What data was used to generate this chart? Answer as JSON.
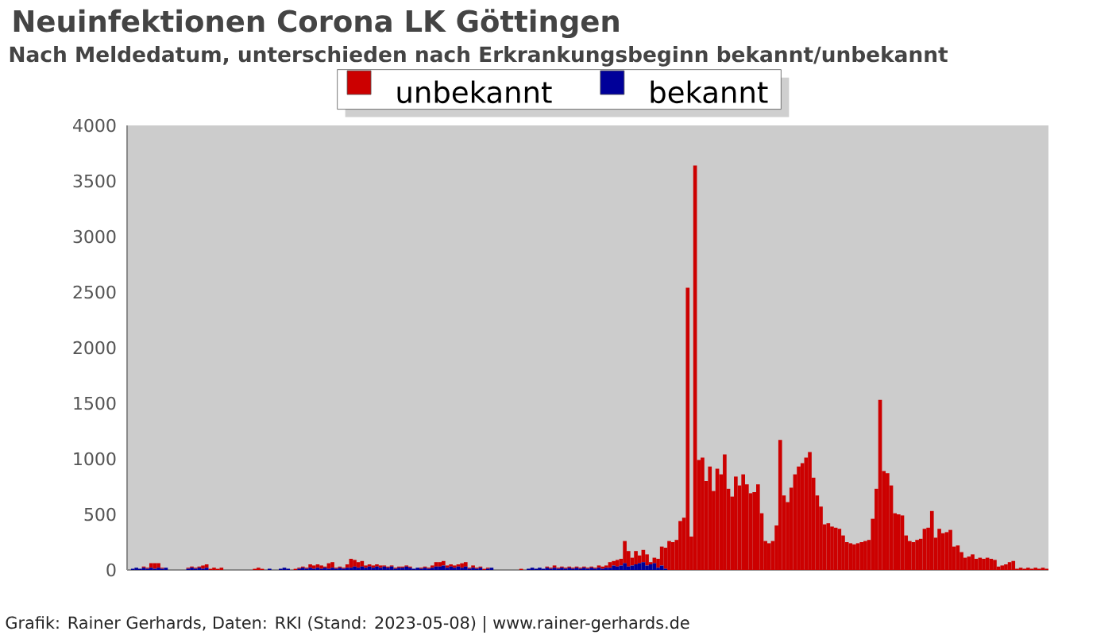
{
  "chart_data": {
    "type": "bar",
    "title": "Neuinfektionen Corona LK Göttingen",
    "subtitle": "Nach Meldedatum, unterschieden nach Erkrankungsbeginn bekannt/unbekannt",
    "annotations": [
      "Grafik: Rainer Gerhards, Daten: RKI (Stand: 2023-05-08) | www.rainer-gerhards.de"
    ],
    "categories": [
      null,
      null,
      null,
      null,
      null,
      null,
      null,
      null,
      null,
      null,
      null,
      null,
      null,
      null,
      null,
      null,
      null,
      null,
      null,
      null,
      null,
      null,
      null,
      null,
      null,
      null,
      null,
      null,
      null,
      null,
      null,
      null,
      null,
      null,
      null,
      null,
      null,
      null,
      null,
      null,
      null,
      null,
      null,
      null,
      null,
      null,
      null,
      null,
      null,
      null,
      null,
      null,
      null,
      null,
      null,
      null,
      null,
      null,
      null,
      null,
      null,
      null,
      null,
      null,
      null,
      null,
      null,
      null,
      null,
      null,
      null,
      null,
      null,
      null,
      null,
      null,
      null,
      null,
      null,
      null,
      null,
      null,
      null,
      null,
      null,
      null,
      null,
      null,
      null,
      null,
      null,
      null,
      null,
      null,
      null,
      null,
      null,
      null,
      null,
      null,
      null,
      null,
      null,
      null,
      null,
      null,
      null,
      null,
      null,
      null,
      null,
      null,
      null,
      null,
      null,
      null,
      null,
      null,
      null,
      null,
      null,
      null,
      null,
      null,
      null,
      null,
      null,
      null,
      null,
      null,
      null,
      null,
      null,
      null,
      null,
      null,
      null,
      null,
      null,
      null,
      null,
      null,
      null,
      null,
      null,
      null,
      null,
      null,
      null,
      null,
      null,
      null,
      null,
      null,
      null,
      null,
      null,
      null,
      null,
      null,
      null,
      null,
      null,
      null,
      null,
      null,
      null,
      null,
      null,
      null,
      null,
      null,
      null,
      null,
      null,
      null,
      null,
      null,
      null,
      null,
      null,
      null,
      null,
      null,
      null,
      null,
      null,
      null,
      null,
      null,
      null,
      null,
      null,
      null,
      null,
      null,
      null,
      null,
      null,
      null,
      null,
      null,
      null,
      null,
      null,
      null,
      null,
      null,
      null,
      null,
      null,
      null,
      null,
      null,
      null,
      null,
      null,
      null,
      null,
      null,
      null,
      null,
      null,
      null,
      null,
      null,
      null,
      null,
      null,
      null,
      null,
      null,
      null,
      null,
      null,
      null,
      null,
      null,
      null,
      null,
      null,
      null,
      null,
      null,
      null,
      null,
      null,
      null,
      null
    ],
    "stacked": true,
    "series": [
      {
        "name": "bekannt",
        "color": "#000099",
        "values": [
          0,
          10,
          20,
          10,
          20,
          10,
          20,
          10,
          20,
          10,
          20,
          0,
          0,
          0,
          0,
          0,
          10,
          20,
          10,
          20,
          10,
          20,
          0,
          0,
          0,
          0,
          0,
          0,
          0,
          0,
          0,
          0,
          0,
          0,
          0,
          0,
          0,
          0,
          10,
          0,
          0,
          10,
          20,
          10,
          0,
          0,
          10,
          20,
          10,
          20,
          10,
          20,
          10,
          20,
          10,
          20,
          10,
          20,
          10,
          20,
          20,
          30,
          20,
          30,
          20,
          30,
          20,
          30,
          20,
          30,
          20,
          30,
          10,
          20,
          20,
          30,
          20,
          10,
          20,
          10,
          20,
          10,
          20,
          30,
          30,
          40,
          20,
          30,
          20,
          30,
          20,
          30,
          10,
          20,
          10,
          20,
          0,
          10,
          20,
          0,
          0,
          0,
          0,
          0,
          0,
          0,
          0,
          0,
          10,
          20,
          10,
          20,
          10,
          20,
          10,
          20,
          10,
          20,
          10,
          20,
          10,
          20,
          10,
          20,
          10,
          20,
          10,
          20,
          10,
          20,
          20,
          40,
          30,
          40,
          60,
          30,
          40,
          50,
          60,
          70,
          40,
          50,
          60,
          20,
          40,
          10,
          0,
          0,
          0,
          0,
          0,
          0,
          0,
          0,
          0,
          0,
          0,
          0,
          0,
          0,
          0,
          0,
          0,
          0,
          0,
          0,
          0,
          0,
          0,
          0,
          0,
          0,
          0,
          0,
          0,
          0,
          0,
          0,
          0,
          0,
          0,
          0,
          0,
          0,
          0,
          0,
          0,
          0,
          0,
          0,
          0,
          0,
          0,
          0,
          0,
          0,
          0,
          0,
          0,
          0,
          0,
          0,
          0,
          0,
          0,
          0,
          0,
          0,
          0,
          0,
          0,
          0,
          0,
          0,
          0,
          0,
          0,
          0,
          0,
          0,
          0,
          0,
          0,
          0,
          0,
          0,
          0,
          0,
          0,
          0,
          0,
          0,
          0,
          0,
          0,
          0,
          0,
          0,
          0,
          0,
          0,
          0,
          0,
          0,
          0,
          0,
          0,
          0,
          0
        ]
      },
      {
        "name": "unbekannt",
        "color": "#cc0000",
        "values": [
          0,
          0,
          0,
          0,
          10,
          10,
          40,
          50,
          40,
          10,
          0,
          0,
          0,
          0,
          0,
          0,
          10,
          10,
          10,
          10,
          30,
          30,
          10,
          20,
          10,
          20,
          0,
          0,
          0,
          0,
          0,
          0,
          0,
          0,
          10,
          20,
          10,
          0,
          0,
          0,
          0,
          0,
          0,
          0,
          0,
          10,
          10,
          10,
          10,
          30,
          30,
          30,
          30,
          10,
          50,
          50,
          10,
          10,
          10,
          30,
          80,
          60,
          50,
          50,
          20,
          20,
          20,
          20,
          20,
          10,
          10,
          10,
          10,
          10,
          10,
          10,
          10,
          0,
          0,
          10,
          10,
          10,
          20,
          40,
          40,
          40,
          20,
          20,
          20,
          20,
          40,
          40,
          10,
          20,
          10,
          10,
          10,
          10,
          0,
          0,
          0,
          0,
          0,
          0,
          0,
          0,
          10,
          0,
          0,
          0,
          0,
          0,
          0,
          10,
          10,
          20,
          10,
          10,
          10,
          10,
          10,
          10,
          10,
          10,
          10,
          10,
          10,
          20,
          20,
          20,
          50,
          40,
          60,
          60,
          200,
          140,
          70,
          120,
          70,
          110,
          100,
          20,
          50,
          80,
          170,
          190,
          260,
          250,
          270,
          440,
          470,
          2540,
          300,
          3640,
          990,
          1010,
          800,
          930,
          710,
          910,
          860,
          1040,
          730,
          660,
          840,
          760,
          860,
          770,
          690,
          700,
          770,
          510,
          260,
          240,
          260,
          400,
          1170,
          670,
          610,
          740,
          860,
          930,
          960,
          1010,
          1060,
          830,
          670,
          570,
          410,
          420,
          390,
          380,
          370,
          310,
          250,
          240,
          230,
          240,
          250,
          260,
          270,
          460,
          730,
          1530,
          890,
          870,
          760,
          510,
          500,
          490,
          310,
          260,
          250,
          270,
          280,
          370,
          380,
          530,
          290,
          370,
          330,
          340,
          360,
          210,
          220,
          160,
          110,
          120,
          140,
          100,
          110,
          100,
          110,
          100,
          90,
          30,
          40,
          50,
          70,
          80,
          10,
          20,
          10,
          20,
          10,
          20,
          10,
          20,
          10
        ]
      }
    ],
    "ylim": [
      0,
      4000
    ],
    "yticks": [
      0,
      500,
      1000,
      1500,
      2000,
      2500,
      3000,
      3500,
      4000
    ],
    "tick_labels": "y",
    "legend": "top"
  }
}
